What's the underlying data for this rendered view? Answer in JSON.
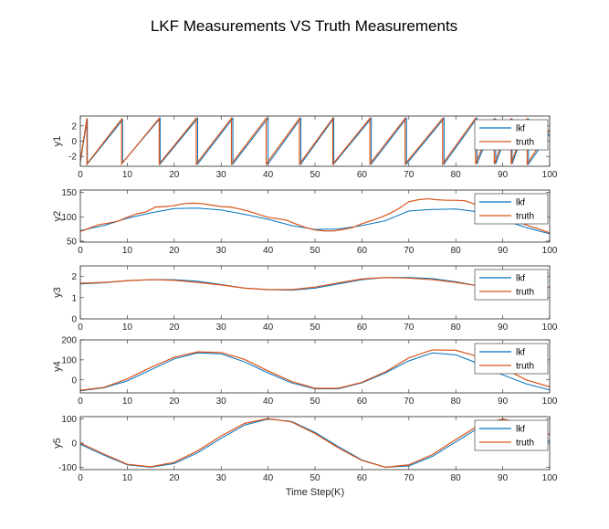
{
  "figure": {
    "title": "LKF Measurements VS Truth Measurements",
    "xlabel": "Time Step(K)"
  },
  "colors": {
    "lkf": "#0072BD",
    "truth": "#D95319",
    "axes": "#262626",
    "background": "#ffffff"
  },
  "chart_data": [
    {
      "type": "line",
      "ylabel": "y1",
      "xlim": [
        0,
        100
      ],
      "ylim": [
        -3.3,
        3.3
      ],
      "xticks": [
        0,
        10,
        20,
        30,
        40,
        50,
        60,
        70,
        80,
        90,
        100
      ],
      "yticks": [
        -2,
        0,
        2
      ],
      "legend": "top-right",
      "series": [
        {
          "name": "lkf",
          "x": [
            0,
            1.5,
            1.5,
            9,
            9,
            17,
            17,
            25,
            25,
            32.5,
            32.5,
            40,
            40,
            47,
            47,
            54,
            54,
            62,
            62,
            69.5,
            69.5,
            77.5,
            77.5,
            84.5,
            84.5,
            88.5,
            88.5,
            92,
            92,
            95.5,
            95.5,
            100
          ],
          "y": [
            -2.8,
            3,
            -3,
            2.8,
            -2.8,
            3,
            -3,
            3,
            -3,
            3,
            -3,
            3,
            -3,
            3,
            -3,
            3,
            -3,
            3,
            -3,
            3,
            -3,
            3,
            -3,
            3,
            -3,
            3,
            -3,
            3,
            -3,
            3,
            -3,
            1
          ]
        },
        {
          "name": "truth",
          "x": [
            0,
            1.4,
            1.4,
            8.8,
            8.8,
            16.8,
            16.8,
            24.7,
            24.7,
            32.2,
            32.2,
            39.6,
            39.6,
            46.7,
            46.7,
            53.8,
            53.8,
            61.7,
            61.7,
            69.2,
            69.2,
            77.2,
            77.2,
            84.2,
            84.2,
            88.2,
            88.2,
            91.8,
            91.8,
            95.2,
            95.2,
            100
          ],
          "y": [
            -2.6,
            3,
            -3,
            2.9,
            -3,
            3,
            -3,
            3,
            -3,
            3,
            -3,
            3,
            -3,
            3,
            -3,
            3,
            -3,
            3,
            -3,
            3,
            -3,
            3,
            -3,
            3,
            -3,
            3,
            -3,
            3,
            -3,
            3,
            -3,
            1.5
          ]
        }
      ]
    },
    {
      "type": "line",
      "ylabel": "y2",
      "xlim": [
        0,
        100
      ],
      "ylim": [
        48,
        155
      ],
      "xticks": [
        0,
        10,
        20,
        30,
        40,
        50,
        60,
        70,
        80,
        90,
        100
      ],
      "yticks": [
        50,
        100,
        150
      ],
      "legend": "top-right",
      "series": [
        {
          "name": "lkf",
          "x": [
            0,
            5,
            10,
            15,
            20,
            25,
            30,
            35,
            40,
            45,
            50,
            55,
            60,
            65,
            70,
            75,
            80,
            85,
            90,
            95,
            100
          ],
          "y": [
            72,
            82,
            97,
            108,
            117,
            118,
            114,
            105,
            95,
            82,
            74,
            75,
            82,
            92,
            112,
            115,
            116,
            110,
            94,
            78,
            65
          ]
        },
        {
          "name": "truth",
          "x": [
            0,
            2,
            4,
            6,
            8,
            10,
            12,
            14,
            16,
            18,
            20,
            22,
            24,
            26,
            28,
            30,
            32,
            34,
            36,
            38,
            40,
            42,
            44,
            46,
            48,
            50,
            52,
            54,
            56,
            58,
            60,
            62,
            64,
            66,
            68,
            70,
            72,
            74,
            76,
            78,
            80,
            82,
            84,
            86,
            88,
            90,
            92,
            94,
            96,
            98,
            100
          ],
          "y": [
            70,
            77,
            84,
            87,
            91,
            99,
            106,
            110,
            120,
            121,
            123,
            127,
            128,
            127,
            124,
            121,
            120,
            116,
            111,
            105,
            99,
            96,
            93,
            85,
            78,
            73,
            71,
            71,
            74,
            78,
            86,
            92,
            99,
            107,
            118,
            131,
            135,
            137,
            135,
            134,
            134,
            133,
            126,
            120,
            113,
            103,
            95,
            87,
            80,
            74,
            67
          ]
        }
      ]
    },
    {
      "type": "line",
      "ylabel": "y3",
      "xlim": [
        0,
        100
      ],
      "ylim": [
        0,
        2.5
      ],
      "xticks": [
        0,
        10,
        20,
        30,
        40,
        50,
        60,
        70,
        80,
        90,
        100
      ],
      "yticks": [
        0,
        1,
        2
      ],
      "legend": "top-right",
      "series": [
        {
          "name": "lkf",
          "x": [
            0,
            5,
            10,
            15,
            20,
            25,
            30,
            35,
            40,
            45,
            50,
            55,
            60,
            65,
            70,
            75,
            80,
            85,
            90,
            95,
            100
          ],
          "y": [
            1.65,
            1.7,
            1.8,
            1.85,
            1.85,
            1.78,
            1.62,
            1.45,
            1.38,
            1.35,
            1.45,
            1.65,
            1.85,
            1.95,
            1.95,
            1.9,
            1.75,
            1.55,
            1.45,
            1.45,
            1.5
          ]
        },
        {
          "name": "truth",
          "x": [
            0,
            5,
            10,
            15,
            20,
            25,
            30,
            35,
            40,
            45,
            50,
            55,
            60,
            65,
            70,
            75,
            80,
            85,
            90,
            95,
            100
          ],
          "y": [
            1.68,
            1.72,
            1.8,
            1.85,
            1.82,
            1.72,
            1.6,
            1.45,
            1.38,
            1.38,
            1.5,
            1.7,
            1.88,
            1.95,
            1.92,
            1.85,
            1.72,
            1.55,
            1.45,
            1.45,
            1.5
          ]
        }
      ]
    },
    {
      "type": "line",
      "ylabel": "y4",
      "xlim": [
        0,
        100
      ],
      "ylim": [
        -65,
        200
      ],
      "xticks": [
        0,
        10,
        20,
        30,
        40,
        50,
        60,
        70,
        80,
        90,
        100
      ],
      "yticks": [
        0,
        100,
        200
      ],
      "legend": "top-right",
      "series": [
        {
          "name": "lkf",
          "x": [
            0,
            5,
            10,
            15,
            20,
            25,
            30,
            35,
            40,
            45,
            50,
            55,
            60,
            65,
            70,
            75,
            80,
            85,
            90,
            95,
            100
          ],
          "y": [
            -55,
            -40,
            -5,
            50,
            105,
            135,
            130,
            90,
            35,
            -15,
            -45,
            -45,
            -15,
            35,
            95,
            135,
            125,
            80,
            25,
            -20,
            -50
          ]
        },
        {
          "name": "truth",
          "x": [
            0,
            5,
            10,
            15,
            20,
            25,
            30,
            35,
            40,
            45,
            50,
            55,
            60,
            65,
            70,
            75,
            80,
            85,
            90,
            95,
            100
          ],
          "y": [
            -52,
            -38,
            5,
            62,
            113,
            140,
            137,
            102,
            45,
            -8,
            -42,
            -42,
            -12,
            40,
            110,
            150,
            148,
            115,
            60,
            0,
            -35
          ]
        }
      ]
    },
    {
      "type": "line",
      "ylabel": "y5",
      "xlim": [
        0,
        100
      ],
      "ylim": [
        -110,
        110
      ],
      "xticks": [
        0,
        10,
        20,
        30,
        40,
        50,
        60,
        70,
        80,
        90,
        100
      ],
      "yticks": [
        -100,
        0,
        100
      ],
      "legend": "top-right",
      "series": [
        {
          "name": "lkf",
          "x": [
            0,
            5,
            10,
            15,
            20,
            25,
            30,
            35,
            40,
            45,
            50,
            55,
            60,
            65,
            70,
            75,
            80,
            85,
            90,
            95,
            100
          ],
          "y": [
            -5,
            -50,
            -90,
            -100,
            -85,
            -40,
            20,
            75,
            100,
            90,
            45,
            -15,
            -70,
            -100,
            -95,
            -55,
            5,
            65,
            100,
            80,
            5
          ]
        },
        {
          "name": "truth",
          "x": [
            0,
            5,
            10,
            15,
            20,
            25,
            30,
            35,
            40,
            45,
            50,
            55,
            60,
            65,
            70,
            75,
            80,
            85,
            90,
            95,
            100
          ],
          "y": [
            0,
            -45,
            -88,
            -98,
            -80,
            -32,
            30,
            82,
            102,
            88,
            40,
            -20,
            -72,
            -100,
            -90,
            -48,
            15,
            75,
            100,
            78,
            35
          ]
        }
      ]
    }
  ]
}
